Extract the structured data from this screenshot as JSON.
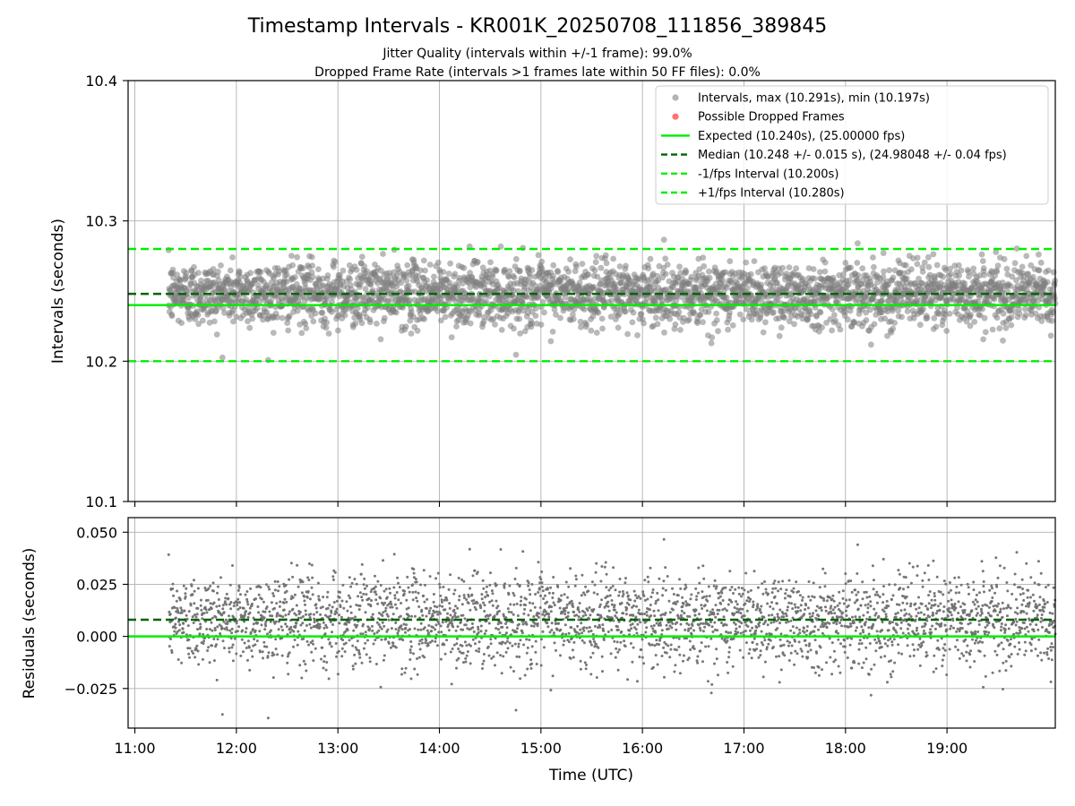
{
  "chart_data": [
    {
      "type": "scatter",
      "title": "Timestamp Intervals - KR001K_20250708_111856_389845",
      "subtitle_lines": [
        "Jitter Quality (intervals within +/-1 frame): 99.0%",
        "Dropped Frame Rate (intervals >1 frames late within 50 FF files): 0.0%"
      ],
      "xlabel": "",
      "ylabel": "Intervals (seconds)",
      "xlim": [
        "10:56",
        "20:04"
      ],
      "ylim": [
        10.1,
        10.4
      ],
      "yticks": [
        "10.1",
        "10.2",
        "10.3",
        "10.4"
      ],
      "xticks": [
        "11:00",
        "12:00",
        "13:00",
        "14:00",
        "15:00",
        "16:00",
        "17:00",
        "18:00",
        "19:00"
      ],
      "grid": true,
      "legend_position": "upper right",
      "series": [
        {
          "name": "Intervals, max (10.291s), min (10.197s)",
          "kind": "points",
          "color": "#808080",
          "x_range": [
            "11:20",
            "20:04"
          ],
          "count": 3200,
          "y_center": 10.248,
          "y_spread": 0.015,
          "y_max": 10.291,
          "y_min": 10.197
        },
        {
          "name": "Possible Dropped Frames",
          "kind": "points",
          "color": "#ff0000",
          "values": []
        },
        {
          "name": "Expected (10.240s), (25.00000 fps)",
          "kind": "hline",
          "y": 10.24,
          "color": "#00ee00",
          "dash": "solid"
        },
        {
          "name": "Median (10.248 +/- 0.015 s), (24.98048 +/- 0.04 fps)",
          "kind": "hline",
          "y": 10.248,
          "color": "#006400",
          "dash": "dashed"
        },
        {
          "name": "-1/fps Interval (10.200s)",
          "kind": "hline",
          "y": 10.2,
          "color": "#00ee00",
          "dash": "dashed"
        },
        {
          "name": "+1/fps Interval (10.280s)",
          "kind": "hline",
          "y": 10.28,
          "color": "#00ee00",
          "dash": "dashed"
        }
      ]
    },
    {
      "type": "scatter",
      "xlabel": "Time (UTC)",
      "ylabel": "Residuals (seconds)",
      "xlim": [
        "10:56",
        "20:04"
      ],
      "ylim": [
        -0.044,
        0.057
      ],
      "yticks": [
        "−0.025",
        "0.000",
        "0.025",
        "0.050"
      ],
      "xticks": [
        "11:00",
        "12:00",
        "13:00",
        "14:00",
        "15:00",
        "16:00",
        "17:00",
        "18:00",
        "19:00"
      ],
      "grid": true,
      "series": [
        {
          "kind": "points",
          "color": "#707070",
          "x_range": [
            "11:20",
            "20:04"
          ],
          "count": 3200,
          "y_center": 0.008,
          "y_spread": 0.015
        },
        {
          "kind": "hline",
          "y": 0.0,
          "color": "#00ee00",
          "dash": "solid"
        },
        {
          "kind": "hline",
          "y": 0.008,
          "color": "#006400",
          "dash": "dashed"
        }
      ]
    }
  ]
}
